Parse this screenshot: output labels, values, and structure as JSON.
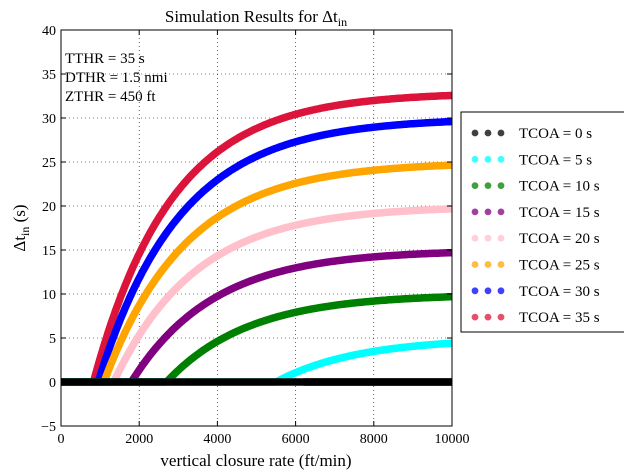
{
  "chart_data": {
    "type": "scatter",
    "title": "Simulation Results for Δt",
    "title_sub": "in",
    "xlabel": "vertical closure rate (ft/min)",
    "ylabel_main": "Δt",
    "ylabel_sub": "in",
    "ylabel_unit": " (s)",
    "xlim": [
      0,
      10000
    ],
    "ylim": [
      -5,
      40
    ],
    "xticks": [
      "0",
      "2000",
      "4000",
      "6000",
      "8000",
      "10000"
    ],
    "yticks": [
      "−5",
      "0",
      "5",
      "10",
      "15",
      "20",
      "25",
      "30",
      "35",
      "40"
    ],
    "grid": true,
    "legend_position": "right-outside",
    "annotations": [
      "TTHR = 35 s",
      "DTHR = 1.5 nmi",
      "ZTHR = 450 ft"
    ],
    "series": [
      {
        "name": "TCOA = 0 s",
        "color": "#000000",
        "onset": 5500,
        "max": 0
      },
      {
        "name": "TCOA = 5 s",
        "color": "#00ffff",
        "onset": 5500,
        "max": 5
      },
      {
        "name": "TCOA = 10 s",
        "color": "#008000",
        "onset": 2700,
        "max": 10
      },
      {
        "name": "TCOA = 15 s",
        "color": "#800080",
        "onset": 1800,
        "max": 15
      },
      {
        "name": "TCOA = 20 s",
        "color": "#ffc0cb",
        "onset": 1350,
        "max": 20
      },
      {
        "name": "TCOA = 25 s",
        "color": "#ffa500",
        "onset": 1100,
        "max": 25
      },
      {
        "name": "TCOA = 30 s",
        "color": "#0000ff",
        "onset": 950,
        "max": 30
      },
      {
        "name": "TCOA = 35 s",
        "color": "#dc143c",
        "onset": 830,
        "max": 35
      }
    ]
  }
}
